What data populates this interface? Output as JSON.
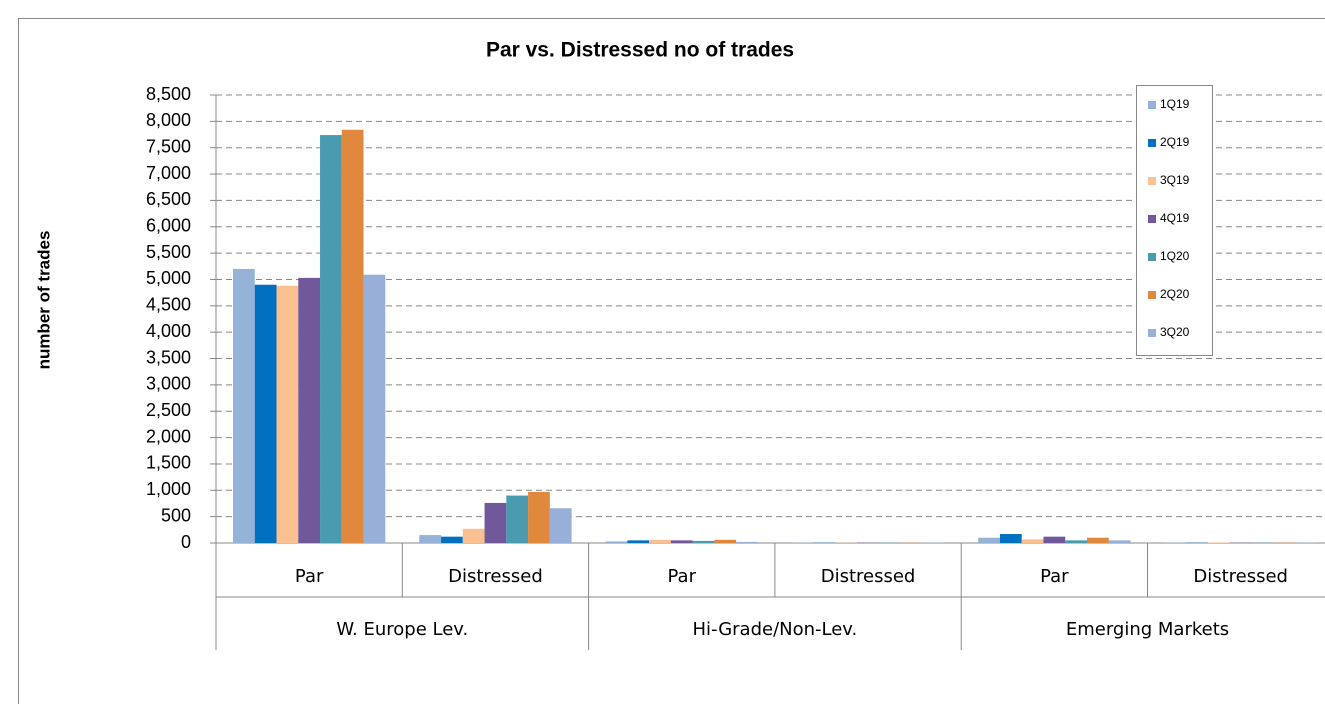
{
  "chart_data": {
    "type": "bar",
    "title": "Par vs. Distressed  no of trades",
    "y_label": "number of trades",
    "categories": [
      "Par",
      "Distressed",
      "Par",
      "Distressed",
      "Par",
      "Distressed"
    ],
    "groups": [
      "W. Europe Lev.",
      "Hi-Grade/Non-Lev.",
      "Emerging Markets"
    ],
    "series": [
      {
        "name": "1Q19",
        "color": "#95b3d7",
        "values": [
          5200,
          150,
          30,
          5,
          100,
          5
        ]
      },
      {
        "name": "2Q19",
        "color": "#0070c0",
        "values": [
          4900,
          120,
          50,
          5,
          170,
          5
        ]
      },
      {
        "name": "3Q19",
        "color": "#fac090",
        "values": [
          4880,
          270,
          60,
          5,
          70,
          10
        ]
      },
      {
        "name": "4Q19",
        "color": "#70589a",
        "values": [
          5030,
          760,
          50,
          5,
          120,
          5
        ]
      },
      {
        "name": "1Q20",
        "color": "#4a9bb0",
        "values": [
          7740,
          900,
          40,
          5,
          50,
          5
        ]
      },
      {
        "name": "2Q20",
        "color": "#e0883e",
        "values": [
          7840,
          970,
          60,
          5,
          100,
          5
        ]
      },
      {
        "name": "3Q20",
        "color": "#98afd8",
        "values": [
          5090,
          660,
          20,
          5,
          50,
          5
        ]
      }
    ],
    "ylim": [
      0,
      8500
    ],
    "yticks": [
      0,
      500,
      {
        "value": 1000,
        "label": "1,000"
      },
      {
        "value": 1500,
        "label": "1,500"
      },
      {
        "value": 2000,
        "label": "2,000"
      },
      {
        "value": 2500,
        "label": "2,500"
      },
      {
        "value": 3000,
        "label": "3,000"
      },
      {
        "value": 3500,
        "label": "3,500"
      },
      {
        "value": 4000,
        "label": "4,000"
      },
      {
        "value": 4500,
        "label": "4,500"
      },
      {
        "value": 5000,
        "label": "5,000"
      },
      {
        "value": 5500,
        "label": "5,500"
      },
      {
        "value": 6000,
        "label": "6,000"
      },
      {
        "value": 6500,
        "label": "6,500"
      },
      {
        "value": 7000,
        "label": "7,000"
      },
      {
        "value": 7500,
        "label": "7,500"
      },
      {
        "value": 8000,
        "label": "8,000"
      },
      {
        "value": 8500,
        "label": "8,500"
      }
    ],
    "grid": true,
    "legend": "top-right"
  }
}
